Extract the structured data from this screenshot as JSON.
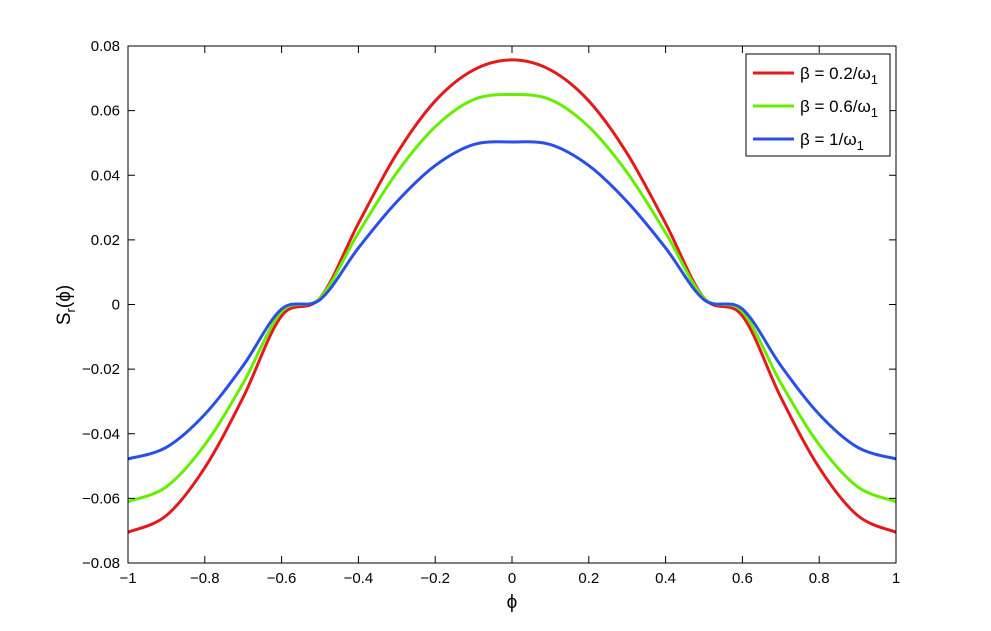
{
  "chart_data": {
    "type": "line",
    "xlabel": "ϕ",
    "ylabel": {
      "base": "S",
      "sub": "r",
      "suffix": "(ϕ)"
    },
    "xlim": [
      -1,
      1
    ],
    "ylim": [
      -0.08,
      0.08
    ],
    "xticks": [
      -1,
      -0.8,
      -0.6,
      -0.4,
      -0.2,
      0,
      0.2,
      0.4,
      0.6,
      0.8,
      1
    ],
    "xtick_labels": [
      "−1",
      "−0.8",
      "−0.6",
      "−0.4",
      "−0.2",
      "0",
      "0.2",
      "0.4",
      "0.6",
      "0.8",
      "1"
    ],
    "yticks": [
      -0.08,
      -0.06,
      -0.04,
      -0.02,
      0,
      0.02,
      0.04,
      0.06,
      0.08
    ],
    "ytick_labels": [
      "−0.08",
      "−0.06",
      "−0.04",
      "−0.02",
      "0",
      "0.02",
      "0.04",
      "0.06",
      "0.08"
    ],
    "grid": false,
    "legend_position": "top-right",
    "x": [
      -1,
      -0.9,
      -0.8,
      -0.7,
      -0.6,
      -0.5,
      -0.4,
      -0.3,
      -0.2,
      -0.1,
      0,
      0.1,
      0.2,
      0.3,
      0.4,
      0.5,
      0.6,
      0.7,
      0.8,
      0.9,
      1
    ],
    "series": [
      {
        "name": {
          "prefix": "β = 0.2/ω",
          "sub": "1"
        },
        "color": "#e31a1c",
        "values": [
          -0.0705,
          -0.0653,
          -0.0505,
          -0.0287,
          -0.0035,
          0.002,
          0.0251,
          0.0467,
          0.063,
          0.0726,
          0.0757,
          0.0726,
          0.063,
          0.0467,
          0.0251,
          0.002,
          -0.0035,
          -0.0287,
          -0.0505,
          -0.0653,
          -0.0705
        ]
      },
      {
        "name": {
          "prefix": "β = 0.6/ω",
          "sub": "1"
        },
        "color": "#66ee00",
        "values": [
          -0.061,
          -0.0564,
          -0.0434,
          -0.0243,
          -0.0022,
          0.002,
          0.0222,
          0.0408,
          0.055,
          0.0634,
          0.065,
          0.0634,
          0.055,
          0.0408,
          0.0222,
          0.002,
          -0.0022,
          -0.0243,
          -0.0434,
          -0.0564,
          -0.061
        ]
      },
      {
        "name": {
          "prefix": "β = 1/ω",
          "sub": "1"
        },
        "color": "#2a4ee8",
        "values": [
          -0.0478,
          -0.0442,
          -0.034,
          -0.0189,
          -0.0014,
          0.0015,
          0.0175,
          0.0318,
          0.043,
          0.0495,
          0.0503,
          0.0495,
          0.043,
          0.0318,
          0.0175,
          0.0015,
          -0.0014,
          -0.0189,
          -0.034,
          -0.0442,
          -0.0478
        ]
      }
    ]
  }
}
